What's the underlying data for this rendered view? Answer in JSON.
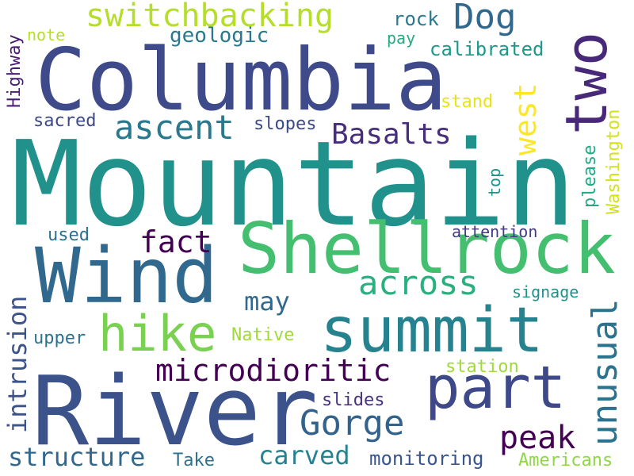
{
  "words": [
    {
      "text": "Mountain",
      "color": "#21918c"
    },
    {
      "text": "River",
      "color": "#3b528b"
    },
    {
      "text": "Columbia",
      "color": "#3e4a89"
    },
    {
      "text": "Wind",
      "color": "#31688e"
    },
    {
      "text": "Shellrock",
      "color": "#44bf70"
    },
    {
      "text": "summit",
      "color": "#26828e"
    },
    {
      "text": "two",
      "color": "#482878"
    },
    {
      "text": "part",
      "color": "#3e4989"
    },
    {
      "text": "hike",
      "color": "#7ad151"
    },
    {
      "text": "switchbacking",
      "color": "#b5de2b"
    },
    {
      "text": "ascent",
      "color": "#2a788e"
    },
    {
      "text": "across",
      "color": "#2ab07f"
    },
    {
      "text": "unusual",
      "color": "#2c728e"
    },
    {
      "text": "microdioritic",
      "color": "#440154"
    },
    {
      "text": "Gorge",
      "color": "#33638d"
    },
    {
      "text": "Dog",
      "color": "#31688e"
    },
    {
      "text": "west",
      "color": "#fde725"
    },
    {
      "text": "Basalts",
      "color": "#472d7b"
    },
    {
      "text": "fact",
      "color": "#440154"
    },
    {
      "text": "peak",
      "color": "#440154"
    },
    {
      "text": "structure",
      "color": "#31688e"
    },
    {
      "text": "carved",
      "color": "#26828e"
    },
    {
      "text": "intrusion",
      "color": "#3b528b"
    },
    {
      "text": "may",
      "color": "#31688e"
    },
    {
      "text": "geologic",
      "color": "#2a788e"
    },
    {
      "text": "monitoring",
      "color": "#39568c"
    },
    {
      "text": "Washington",
      "color": "#d2e21b"
    },
    {
      "text": "calibrated",
      "color": "#1f988b"
    },
    {
      "text": "Americans",
      "color": "#8fd744"
    },
    {
      "text": "slopes",
      "color": "#3e4989"
    },
    {
      "text": "sacred",
      "color": "#3e4989"
    },
    {
      "text": "rock",
      "color": "#2a788e"
    },
    {
      "text": "pay",
      "color": "#25ab82"
    },
    {
      "text": "note",
      "color": "#b5de2b"
    },
    {
      "text": "stand",
      "color": "#e5e419"
    },
    {
      "text": "please",
      "color": "#22a884"
    },
    {
      "text": "Highway",
      "color": "#481f70"
    },
    {
      "text": "top",
      "color": "#21918c"
    },
    {
      "text": "used",
      "color": "#2c728e"
    },
    {
      "text": "attention",
      "color": "#443983"
    },
    {
      "text": "signage",
      "color": "#21918c"
    },
    {
      "text": "upper",
      "color": "#2c728e"
    },
    {
      "text": "Native",
      "color": "#a0da39"
    },
    {
      "text": "station",
      "color": "#a0da39"
    },
    {
      "text": "slides",
      "color": "#46327e"
    },
    {
      "text": "Take",
      "color": "#2c728e"
    }
  ]
}
